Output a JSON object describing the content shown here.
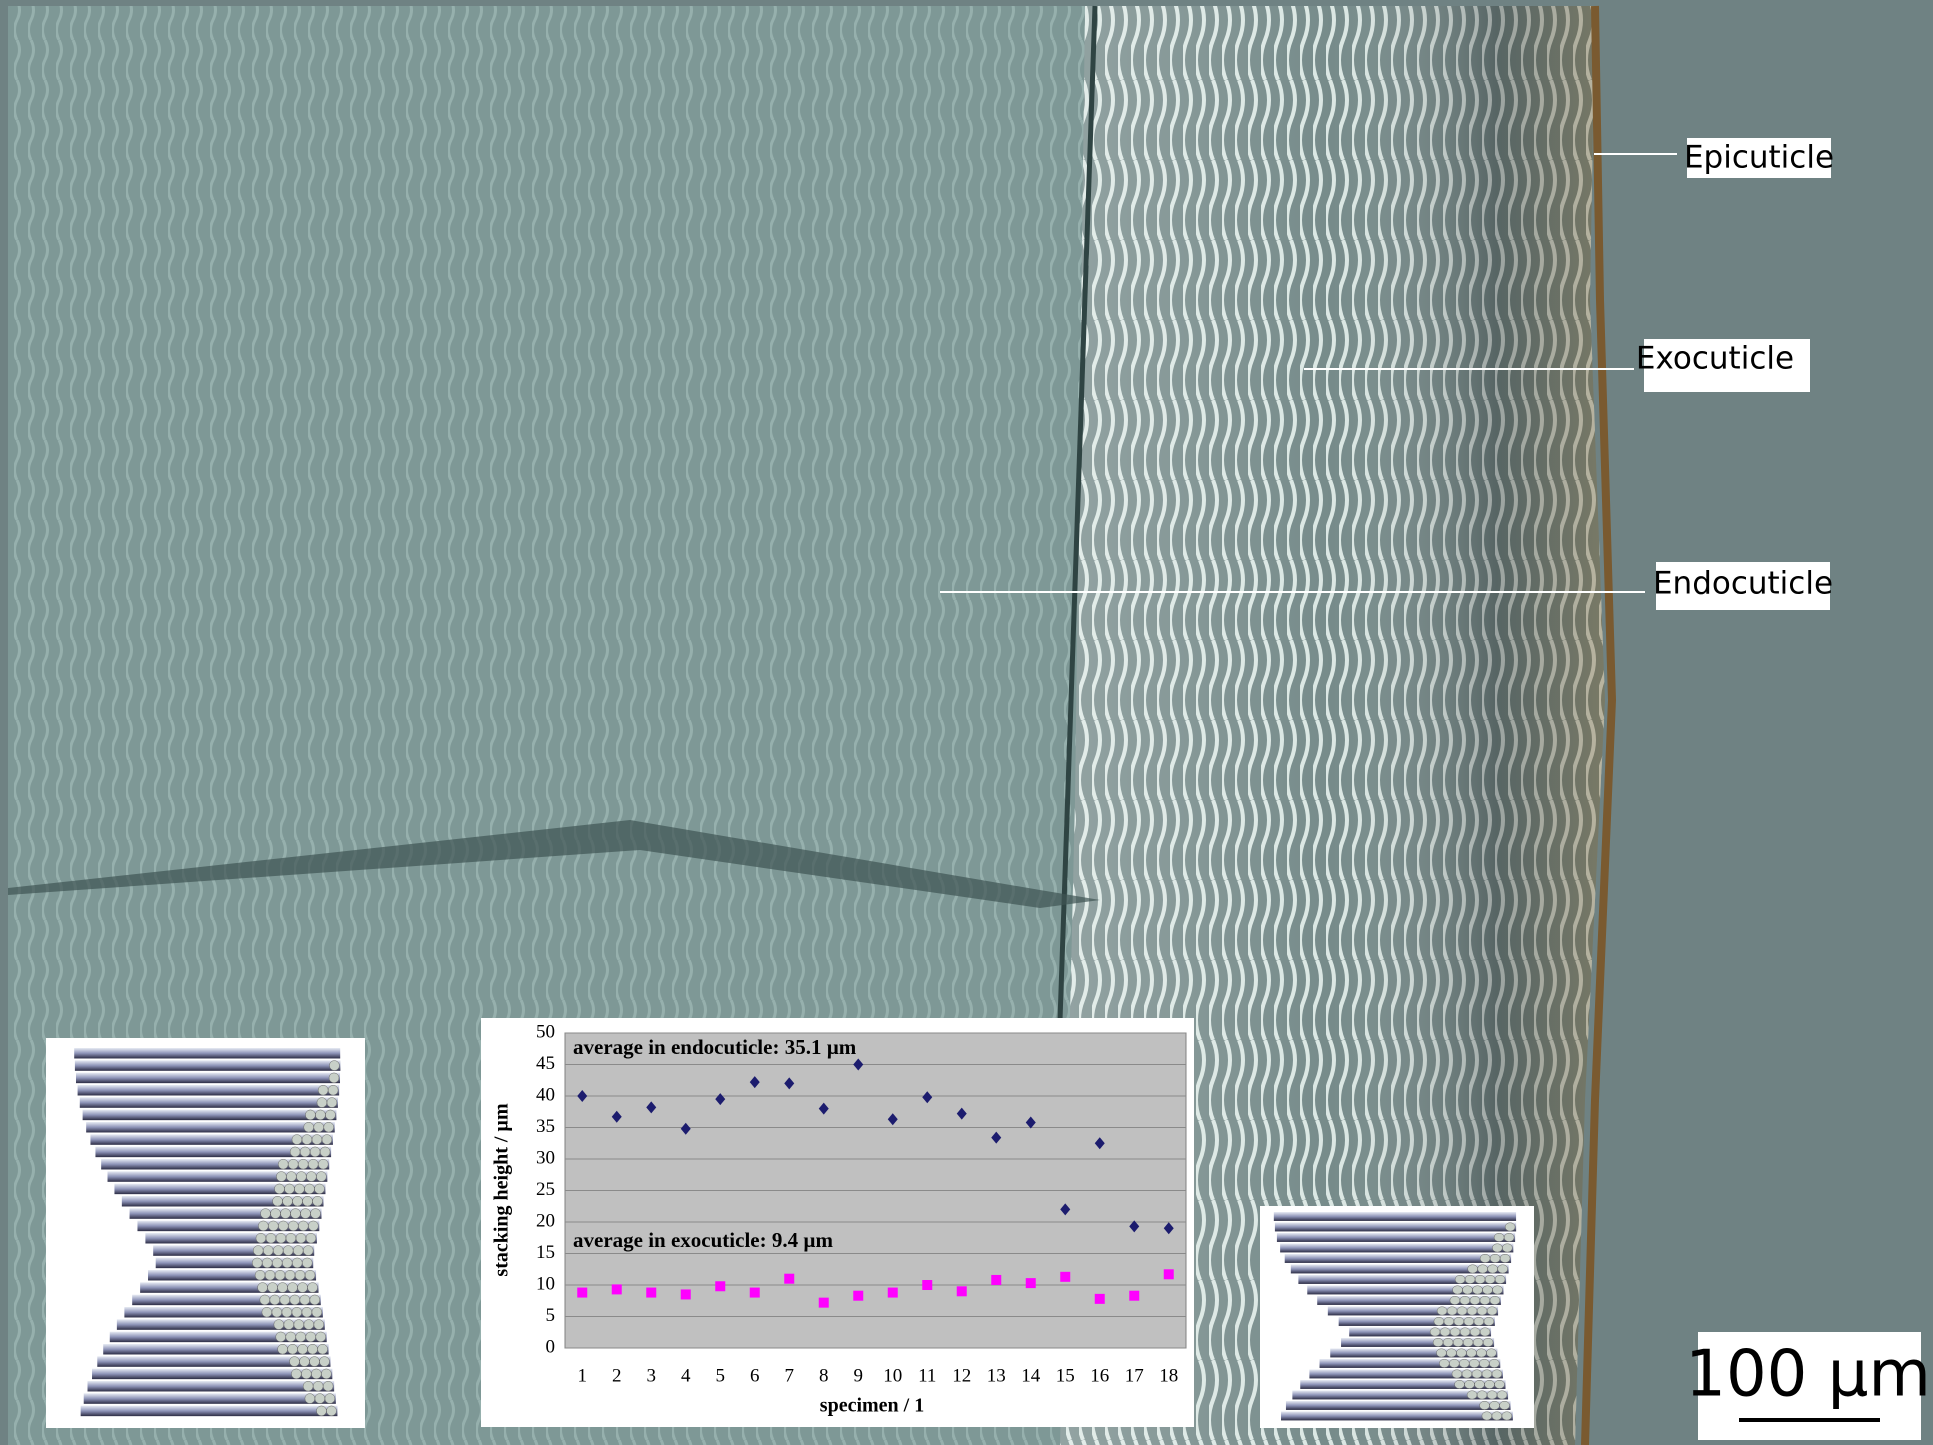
{
  "labels": {
    "epicuticle": "Epicuticle",
    "exocuticle": "Exocuticle",
    "endocuticle": "Endocuticle"
  },
  "scale_bar": "100 µm",
  "chart_data": {
    "type": "scatter",
    "x_label": "specimen  / 1",
    "y_label": "stacking height  / µm",
    "annotations": [
      "average in endocuticle: 35.1 µm",
      "average in exocuticle: 9.4 µm"
    ],
    "categories": [
      "1",
      "2",
      "3",
      "4",
      "5",
      "6",
      "7",
      "8",
      "9",
      "10",
      "11",
      "12",
      "13",
      "14",
      "15",
      "16",
      "17",
      "18"
    ],
    "series": [
      {
        "color": "#1c1c6e",
        "marker": "diamond",
        "values": [
          40,
          36.7,
          38.2,
          34.8,
          39.5,
          42.2,
          42,
          38,
          45,
          36.3,
          39.8,
          37.2,
          33.4,
          35.8,
          22,
          32.5,
          19.3,
          19
        ]
      },
      {
        "color": "#ff00ff",
        "marker": "square",
        "values": [
          8.8,
          9.3,
          8.8,
          8.5,
          9.8,
          8.8,
          11,
          7.2,
          8.3,
          8.8,
          10,
          9,
          10.8,
          10.3,
          11.3,
          7.8,
          8.3,
          11.7
        ]
      }
    ],
    "ylim": [
      0,
      50
    ],
    "yticks": [
      0,
      5,
      10,
      15,
      20,
      25,
      30,
      35,
      40,
      45,
      50
    ],
    "grid": true
  }
}
